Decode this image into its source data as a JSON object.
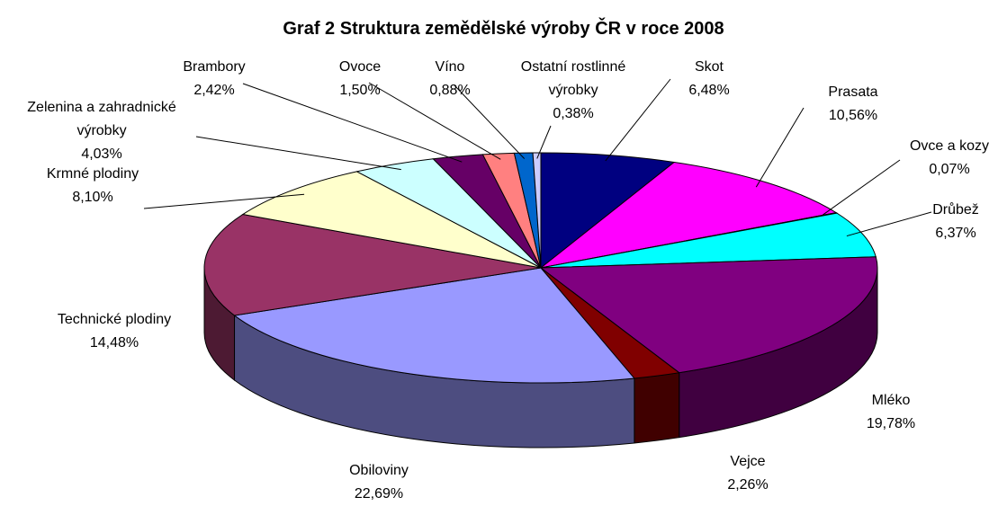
{
  "chart_data": {
    "type": "pie3d",
    "title": "Graf 2 Struktura zemědělské výroby ČR v roce 2008",
    "categories": [
      "Skot",
      "Prasata",
      "Ovce a kozy",
      "Drůbež",
      "Mléko",
      "Vejce",
      "Obiloviny",
      "Technické plodiny",
      "Krmné plodiny",
      "Zelenina a zahradnické výrobky",
      "Brambory",
      "Ovoce",
      "Víno",
      "Ostatní rostlinné výrobky"
    ],
    "values": [
      6.48,
      10.56,
      0.07,
      6.37,
      19.78,
      2.26,
      22.69,
      14.48,
      8.1,
      4.03,
      2.42,
      1.5,
      0.88,
      0.38
    ],
    "value_labels": [
      "6,48%",
      "10,56%",
      "0,07%",
      "6,37%",
      "19,78%",
      "2,26%",
      "22,69%",
      "14,48%",
      "8,10%",
      "4,03%",
      "2,42%",
      "1,50%",
      "0,88%",
      "0,38%"
    ],
    "colors": [
      "#000080",
      "#ff00ff",
      "#ffff00",
      "#00ffff",
      "#800080",
      "#800000",
      "#9999ff",
      "#993366",
      "#ffffcc",
      "#ccffff",
      "#660066",
      "#ff8080",
      "#0066cc",
      "#ccccff"
    ]
  }
}
